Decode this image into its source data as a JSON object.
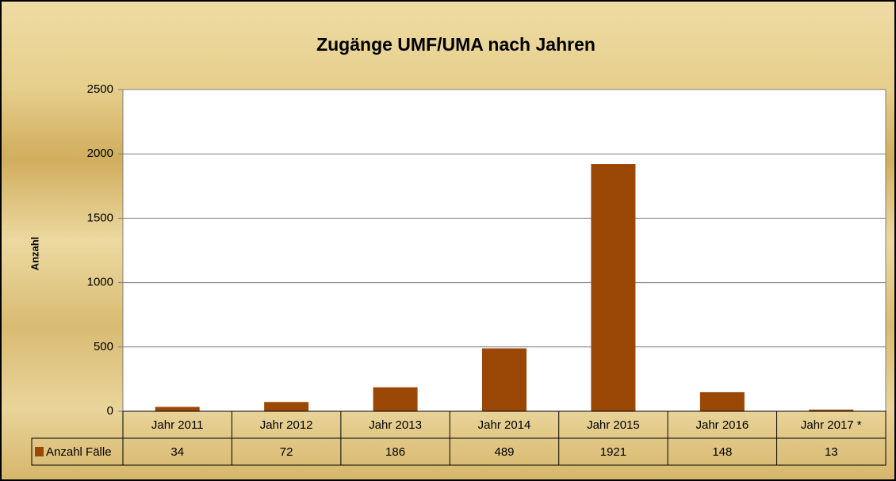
{
  "chart_data": {
    "type": "bar",
    "title": "Zugänge UMF/UMA nach Jahren",
    "y_label": "Anzahl",
    "categories": [
      "Jahr 2011",
      "Jahr 2012",
      "Jahr 2013",
      "Jahr 2014",
      "Jahr 2015",
      "Jahr 2016",
      "Jahr 2017 *"
    ],
    "series": [
      {
        "name": "Anzahl Fälle",
        "color": "#9b4706",
        "values": [
          34,
          72,
          186,
          489,
          1921,
          148,
          13
        ]
      }
    ],
    "ylim": [
      0,
      2500
    ],
    "yticks": [
      0,
      500,
      1000,
      1500,
      2000,
      2500
    ],
    "grid": true,
    "data_table": true
  }
}
